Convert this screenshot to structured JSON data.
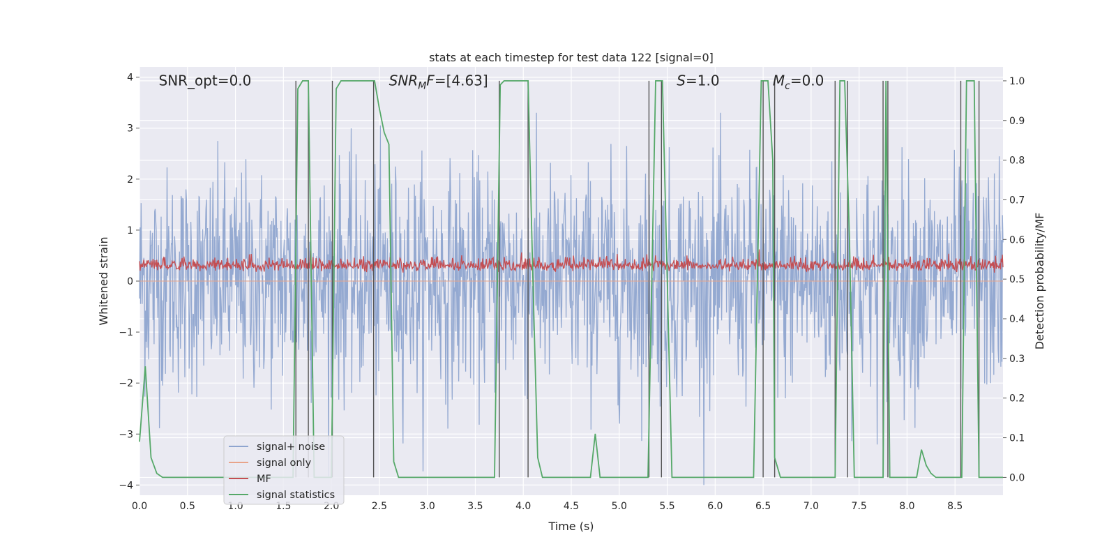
{
  "chart_data": {
    "type": "line",
    "title": "stats at each timestep for test data 122 [signal=0]",
    "xlabel": "Time (s)",
    "ylabel": "Whitened strain",
    "y2label": "Detection probability/MF",
    "xlim": [
      0,
      9.0
    ],
    "ylim": [
      -4.2,
      4.2
    ],
    "y2lim": [
      -0.045,
      1.035
    ],
    "x_ticks": [
      "0.0",
      "0.5",
      "1.0",
      "1.5",
      "2.0",
      "2.5",
      "3.0",
      "3.5",
      "4.0",
      "4.5",
      "5.0",
      "5.5",
      "6.0",
      "6.5",
      "7.0",
      "7.5",
      "8.0",
      "8.5"
    ],
    "y_ticks": [
      "−4",
      "−3",
      "−2",
      "−1",
      "0",
      "1",
      "2",
      "3",
      "4"
    ],
    "y2_ticks": [
      "0.0",
      "0.1",
      "0.2",
      "0.3",
      "0.4",
      "0.5",
      "0.6",
      "0.7",
      "0.8",
      "0.9",
      "1.0"
    ],
    "grid": true,
    "legend_position": "lower-left",
    "annotations": [
      {
        "html": "SNR_opt=0.0",
        "x": 0.2,
        "y": 3.95
      },
      {
        "html": "SNR_MF=[4.63]",
        "x": 2.6,
        "y": 3.95
      },
      {
        "html": "S=1.0",
        "x": 5.6,
        "y": 3.95
      },
      {
        "html": "M_c=0.0",
        "x": 6.6,
        "y": 3.95
      }
    ],
    "series": [
      {
        "name": "signal+ noise",
        "color": "#8fa5cf",
        "description": "noisy whitened strain, range approx [-4, 3.3]"
      },
      {
        "name": "signal only",
        "color": "#e8a48a",
        "description": "zero (no signal)"
      },
      {
        "name": "MF",
        "color": "#c44e52",
        "description": "matched-filter output, mean approx 0.53, range approx [0.51, 0.58] on right axis"
      },
      {
        "name": "signal statistics",
        "color": "#55a868",
        "x": [
          0.0,
          0.06,
          0.12,
          0.18,
          0.24,
          0.3,
          0.9,
          1.5,
          1.6,
          1.65,
          1.7,
          1.76,
          1.82,
          1.9,
          2.0,
          2.05,
          2.1,
          2.2,
          2.3,
          2.4,
          2.45,
          2.5,
          2.55,
          2.6,
          2.65,
          2.7,
          3.0,
          3.5,
          3.7,
          3.76,
          3.8,
          3.9,
          4.0,
          4.05,
          4.1,
          4.15,
          4.2,
          4.5,
          4.7,
          4.75,
          4.8,
          5.3,
          5.38,
          5.45,
          5.5,
          5.55,
          5.6,
          6.0,
          6.4,
          6.48,
          6.55,
          6.6,
          6.62,
          6.68,
          6.75,
          7.0,
          7.25,
          7.3,
          7.35,
          7.4,
          7.45,
          7.5,
          7.75,
          7.78,
          7.82,
          7.85,
          8.1,
          8.15,
          8.2,
          8.25,
          8.3,
          8.5,
          8.57,
          8.62,
          8.7,
          8.75,
          8.8,
          9.0
        ],
        "y": [
          0.09,
          0.28,
          0.05,
          0.01,
          0.0,
          0.0,
          0.0,
          0.0,
          0.0,
          0.98,
          1.0,
          1.0,
          0.0,
          0.0,
          0.0,
          0.98,
          1.0,
          1.0,
          1.0,
          1.0,
          1.0,
          0.93,
          0.87,
          0.84,
          0.04,
          0.0,
          0.0,
          0.0,
          0.0,
          0.99,
          1.0,
          1.0,
          1.0,
          1.0,
          0.5,
          0.05,
          0.0,
          0.0,
          0.0,
          0.11,
          0.0,
          0.0,
          1.0,
          1.0,
          0.5,
          0.0,
          0.0,
          0.0,
          0.0,
          1.0,
          1.0,
          0.8,
          0.05,
          0.0,
          0.0,
          0.0,
          0.0,
          1.0,
          1.0,
          0.6,
          0.0,
          0.0,
          0.0,
          1.0,
          0.0,
          0.0,
          0.0,
          0.07,
          0.03,
          0.01,
          0.0,
          0.0,
          0.0,
          1.0,
          1.0,
          0.0,
          0.0,
          0.0
        ]
      }
    ],
    "vlines": {
      "color": "#555555",
      "x": [
        1.63,
        1.76,
        2.01,
        2.44,
        3.75,
        4.05,
        5.31,
        5.44,
        6.5,
        6.62,
        7.25,
        7.38,
        7.75,
        7.8,
        8.56,
        8.75
      ]
    }
  }
}
